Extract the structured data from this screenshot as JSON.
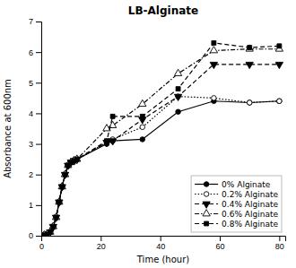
{
  "chart_data": {
    "type": "line",
    "title": "LB-Alginate",
    "xlabel": "Time (hour)",
    "ylabel": "Absorbance at 600nm",
    "x": [
      0,
      1,
      2,
      3,
      4,
      5,
      6,
      7,
      8,
      9,
      10,
      11,
      12,
      22,
      24,
      34,
      46,
      58,
      70,
      80
    ],
    "xlim": [
      0,
      82
    ],
    "ylim": [
      0,
      7
    ],
    "xticks": [
      0,
      20,
      40,
      60,
      80
    ],
    "yticks": [
      0,
      1,
      2,
      3,
      4,
      5,
      6,
      7
    ],
    "grid": false,
    "legend": "lower right",
    "series": [
      {
        "name": "0% Alginate",
        "color": "black",
        "marker": "circle",
        "line_style": "solid",
        "values": [
          0,
          0.02,
          0.05,
          0.12,
          0.3,
          0.6,
          1.1,
          1.6,
          2.0,
          2.3,
          2.4,
          2.45,
          2.5,
          3.0,
          3.1,
          3.15,
          4.05,
          4.4,
          4.35,
          4.4
        ]
      },
      {
        "name": "0.2% Alginate",
        "color": "black",
        "marker": "circle-open",
        "line_style": "dotted",
        "values": [
          0,
          0.02,
          0.05,
          0.12,
          0.3,
          0.6,
          1.1,
          1.6,
          2.0,
          2.3,
          2.4,
          2.45,
          2.5,
          3.05,
          3.15,
          3.55,
          4.55,
          4.5,
          4.35,
          4.4
        ]
      },
      {
        "name": "0.4% Alginate",
        "color": "black",
        "marker": "triangle-down",
        "line_style": "dashed",
        "values": [
          0,
          0.02,
          0.05,
          0.12,
          0.3,
          0.6,
          1.1,
          1.6,
          2.0,
          2.3,
          2.4,
          2.45,
          2.5,
          3.05,
          3.1,
          3.8,
          4.55,
          5.6,
          5.6,
          5.6
        ]
      },
      {
        "name": "0.6% Alginate",
        "color": "black",
        "marker": "triangle-up-open",
        "line_style": "dashdot",
        "values": [
          0,
          0.02,
          0.05,
          0.12,
          0.3,
          0.6,
          1.1,
          1.6,
          2.0,
          2.3,
          2.4,
          2.45,
          2.5,
          3.5,
          3.6,
          4.3,
          5.3,
          6.05,
          6.1,
          6.1
        ]
      },
      {
        "name": "0.8% Alginate",
        "color": "black",
        "marker": "square",
        "line_style": "dashed",
        "values": [
          0,
          0.02,
          0.05,
          0.12,
          0.3,
          0.6,
          1.1,
          1.6,
          2.0,
          2.3,
          2.4,
          2.45,
          2.5,
          3.1,
          3.9,
          3.9,
          4.8,
          6.3,
          6.15,
          6.2
        ]
      }
    ]
  }
}
